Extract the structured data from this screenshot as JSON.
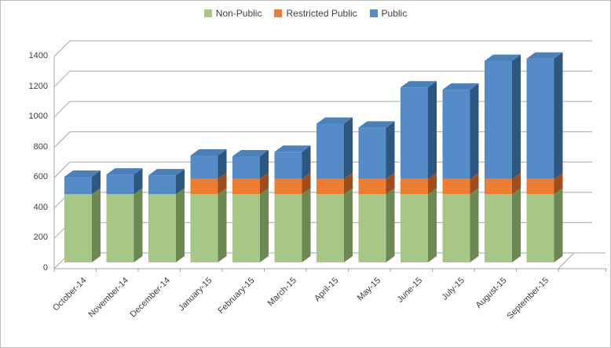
{
  "chart_data": {
    "type": "bar",
    "stacked": true,
    "style": "3d-column",
    "title": "",
    "xlabel": "",
    "ylabel": "",
    "categories": [
      "October-14",
      "November-14",
      "December-14",
      "January-15",
      "February-15",
      "March-15",
      "April-15",
      "May-15",
      "June-15",
      "July-15",
      "August-15",
      "September-15"
    ],
    "series": [
      {
        "name": "Non-Public",
        "color": "#A7C786",
        "side_color": "#6E8853",
        "top_color": "#8FB269",
        "values": [
          450,
          450,
          450,
          450,
          450,
          450,
          450,
          450,
          450,
          450,
          450,
          450
        ]
      },
      {
        "name": "Restricted Public",
        "color": "#ED7D31",
        "side_color": "#9E4E1D",
        "top_color": "#D86E24",
        "values": [
          0,
          0,
          0,
          100,
          100,
          100,
          100,
          100,
          100,
          100,
          100,
          100
        ]
      },
      {
        "name": "Public",
        "color": "#558CC8",
        "side_color": "#2E577F",
        "top_color": "#4A81B8",
        "values": [
          115,
          130,
          125,
          155,
          150,
          180,
          365,
          340,
          605,
          590,
          780,
          795
        ]
      }
    ],
    "totals": [
      565,
      580,
      575,
      705,
      700,
      730,
      915,
      890,
      1155,
      1140,
      1330,
      1345
    ],
    "ylim": [
      0,
      1400
    ],
    "ytick_step": 200,
    "ytick_labels": [
      "0",
      "200",
      "400",
      "600",
      "800",
      "1000",
      "1200",
      "1400"
    ],
    "grid": true,
    "legend_position": "top-center",
    "colors": {
      "gridline": "#A6A6A6",
      "axis": "#A6A6A6",
      "text": "#404040",
      "background": "#FFFFFF",
      "border": "#BDBDBD"
    }
  }
}
